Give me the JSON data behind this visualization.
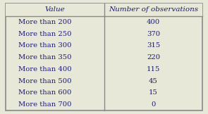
{
  "col1_header": "Value",
  "col2_header": "Number of observations",
  "rows": [
    [
      "More than 200",
      "400"
    ],
    [
      "More than 250",
      "370"
    ],
    [
      "More than 300",
      "315"
    ],
    [
      "More than 350",
      "220"
    ],
    [
      "More than 400",
      "115"
    ],
    [
      "More than 500",
      "45"
    ],
    [
      "More than 600",
      "15"
    ],
    [
      "More than 700",
      "0"
    ]
  ],
  "bg_color": "#e8e8d8",
  "cell_bg": "#e8e8d8",
  "header_fontsize": 7.5,
  "cell_fontsize": 7.2,
  "text_color": "#1a1a7a",
  "border_color": "#888888",
  "fig_width": 2.95,
  "fig_height": 1.62,
  "dpi": 100
}
